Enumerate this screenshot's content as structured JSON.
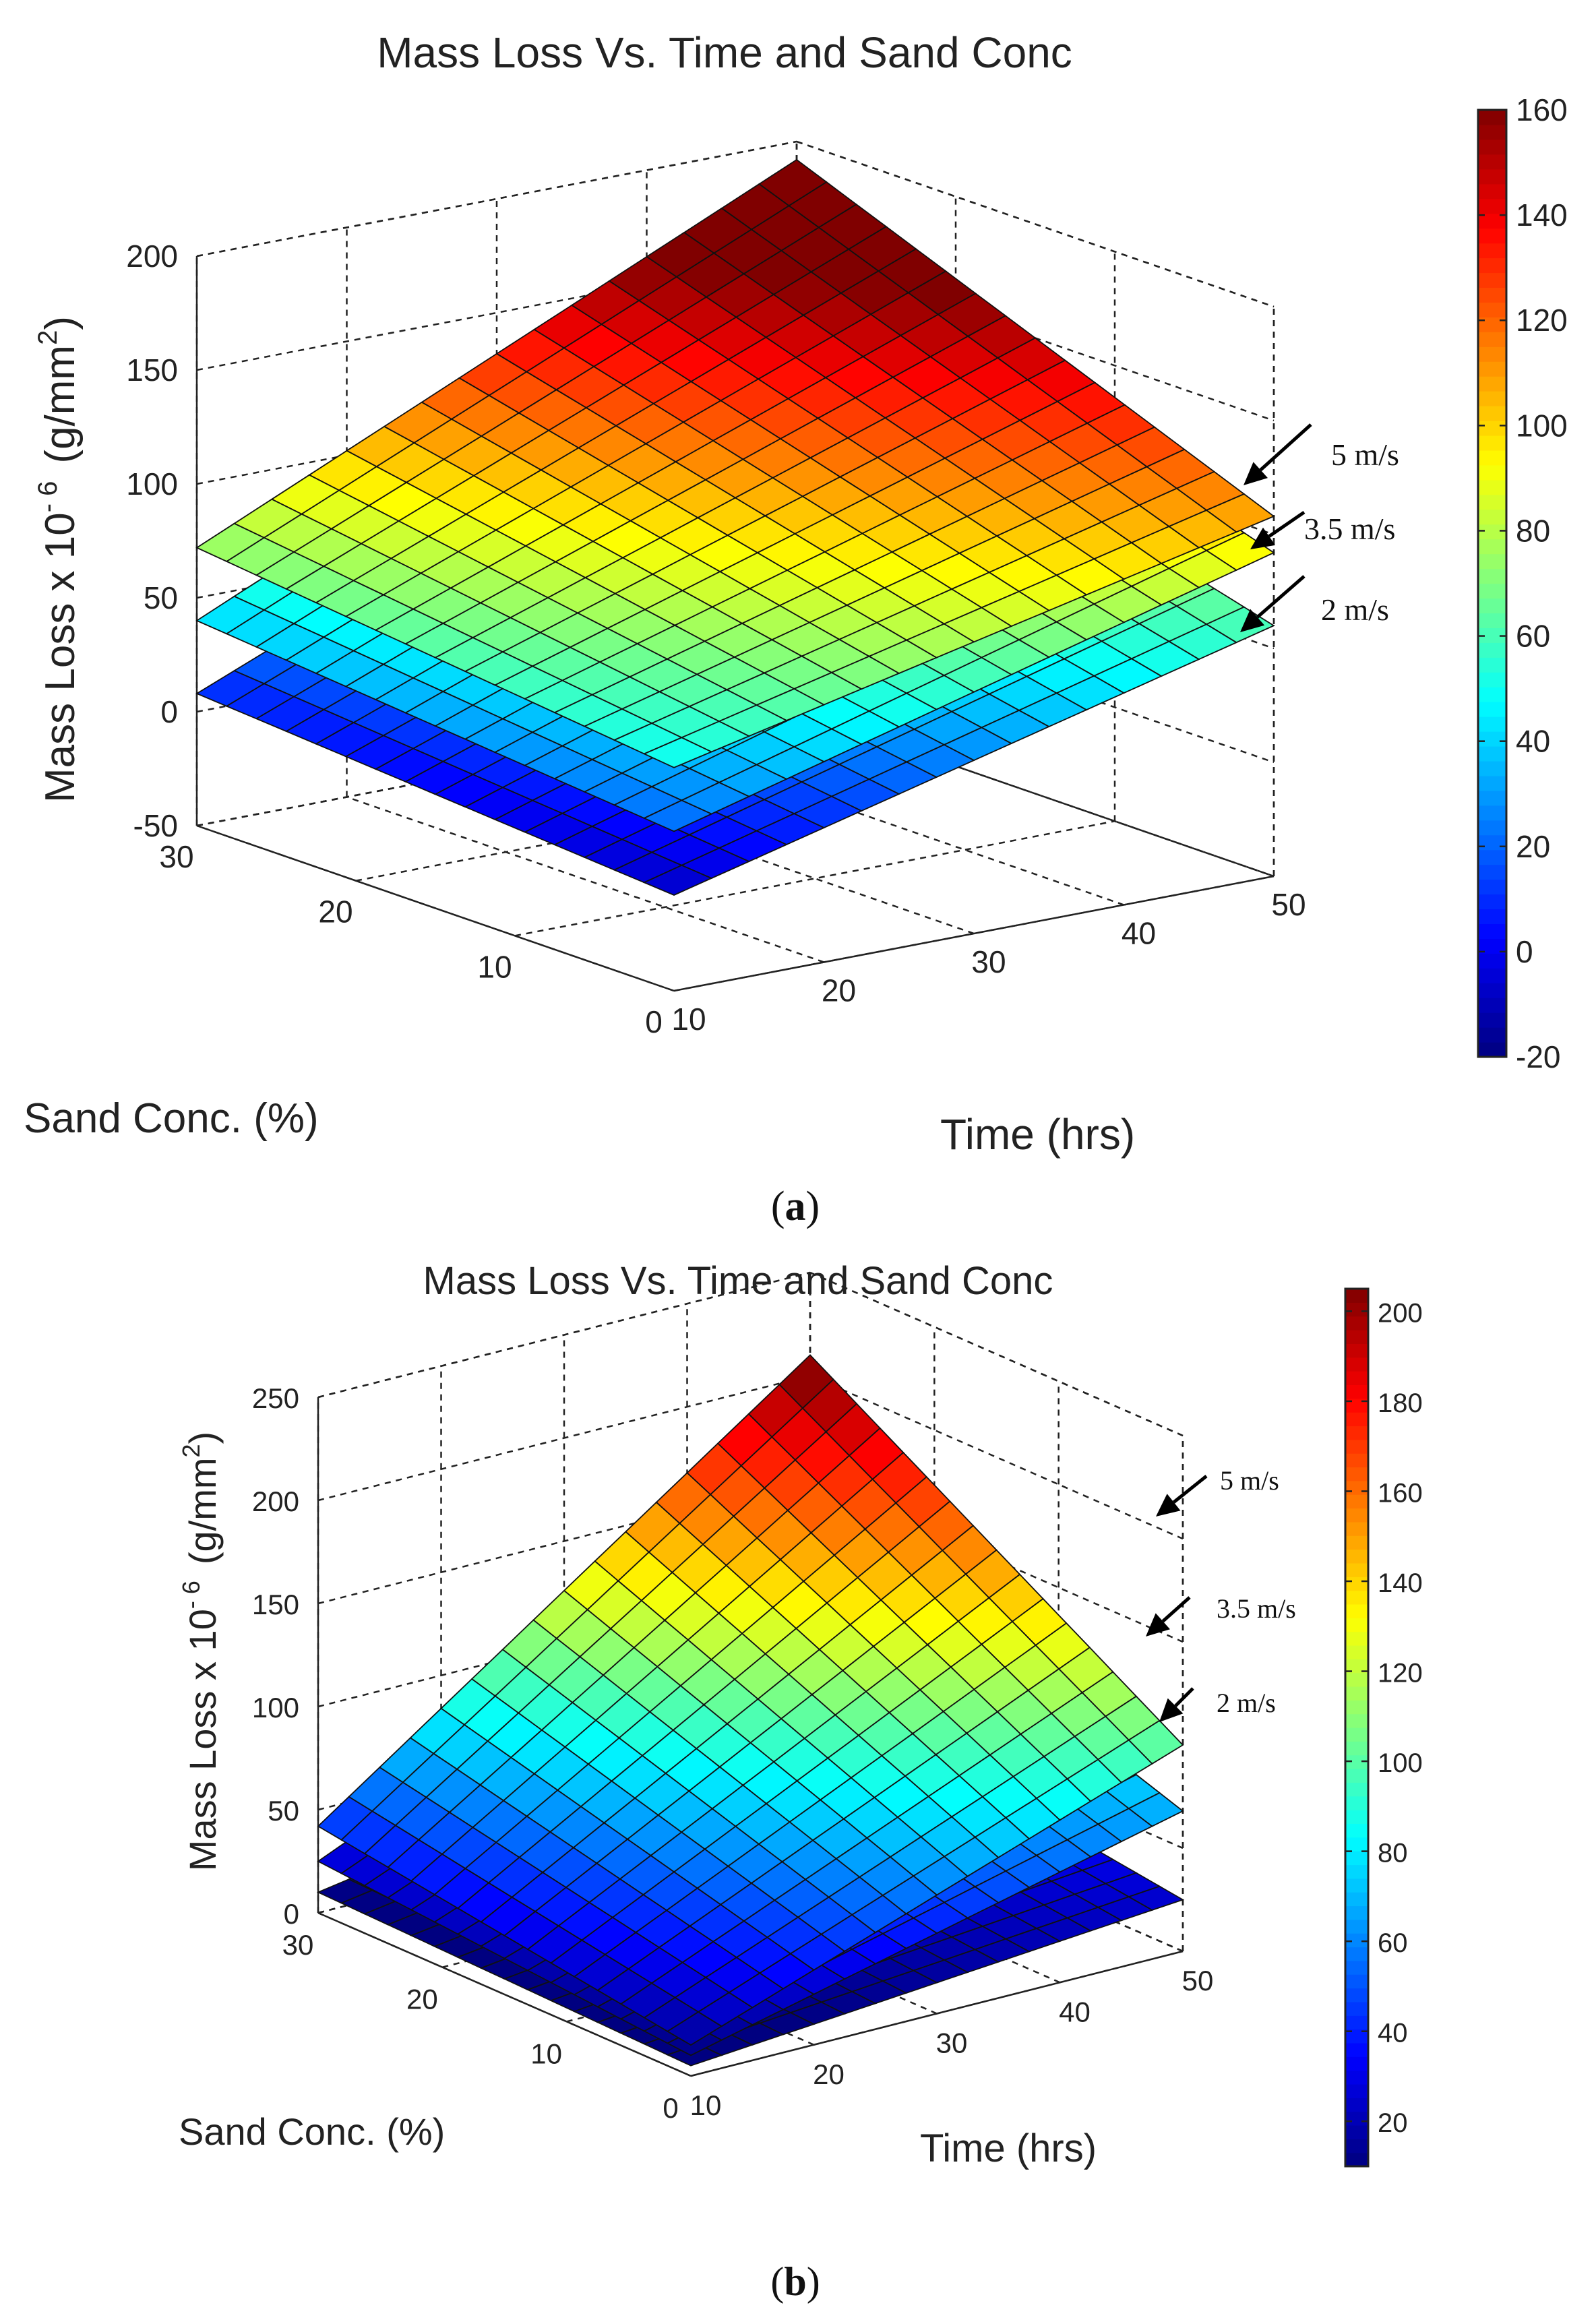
{
  "chart_data": [
    {
      "type": "surface",
      "panel_label": "a",
      "title": "Mass Loss Vs. Time and Sand Conc",
      "xlabel": "Time (hrs)",
      "ylabel": "Sand Conc. (%)",
      "zlabel_main": "Mass Loss x 10",
      "zlabel_exp": "- 6",
      "zlabel_unit_open": "(g/mm",
      "zlabel_unit_sup": "2",
      "zlabel_unit_close": ")",
      "xlim": [
        10,
        50
      ],
      "ylim": [
        0,
        30
      ],
      "zlim": [
        -50,
        200
      ],
      "x_ticks": [
        "10",
        "20",
        "30",
        "40",
        "50"
      ],
      "y_ticks": [
        "0",
        "10",
        "20",
        "30"
      ],
      "z_ticks": [
        "-50",
        "0",
        "50",
        "100",
        "150",
        "200"
      ],
      "colorbar": {
        "min": -20,
        "max": 160,
        "ticks": [
          "-20",
          "0",
          "20",
          "40",
          "60",
          "80",
          "100",
          "120",
          "140",
          "160"
        ]
      },
      "series": [
        {
          "name": "5 m/s",
          "label": "5 m/s",
          "corners": {
            "t10_s0": 48,
            "t50_s0": 108,
            "t10_s30": 72,
            "t50_s30": 192
          }
        },
        {
          "name": "3.5 m/s",
          "label": "3.5 m/s",
          "corners": {
            "t10_s0": 20,
            "t50_s0": 92,
            "t10_s30": 40,
            "t50_s30": 160
          }
        },
        {
          "name": "2 m/s",
          "label": "2 m/s",
          "corners": {
            "t10_s0": -8,
            "t50_s0": 60,
            "t10_s30": 8,
            "t50_s30": 118
          }
        }
      ]
    },
    {
      "type": "surface",
      "panel_label": "b",
      "title": "Mass Loss Vs. Time and Sand Conc",
      "xlabel": "Time (hrs)",
      "ylabel": "Sand Conc. (%)",
      "zlabel_main": "Mass Loss x 10",
      "zlabel_exp": "- 6",
      "zlabel_unit_open": "(g/mm",
      "zlabel_unit_sup": "2",
      "zlabel_unit_close": ")",
      "xlim": [
        10,
        50
      ],
      "ylim": [
        0,
        30
      ],
      "zlim": [
        0,
        250
      ],
      "x_ticks": [
        "10",
        "20",
        "30",
        "40",
        "50"
      ],
      "y_ticks": [
        "0",
        "10",
        "20",
        "30"
      ],
      "z_ticks": [
        "0",
        "50",
        "100",
        "150",
        "200",
        "250"
      ],
      "colorbar": {
        "min": 10,
        "max": 205,
        "ticks": [
          "20",
          "40",
          "60",
          "80",
          "100",
          "120",
          "140",
          "160",
          "180",
          "200"
        ]
      },
      "series": [
        {
          "name": "5 m/s",
          "label": "5 m/s",
          "corners": {
            "t10_s0": 15,
            "t50_s0": 100,
            "t10_s30": 42,
            "t50_s30": 210
          }
        },
        {
          "name": "3.5 m/s",
          "label": "3.5 m/s",
          "corners": {
            "t10_s0": 10,
            "t50_s0": 68,
            "t10_s30": 25,
            "t50_s30": 130
          }
        },
        {
          "name": "2 m/s",
          "label": "2 m/s",
          "corners": {
            "t10_s0": 5,
            "t50_s0": 25,
            "t10_s30": 10,
            "t50_s30": 50
          }
        }
      ]
    }
  ]
}
